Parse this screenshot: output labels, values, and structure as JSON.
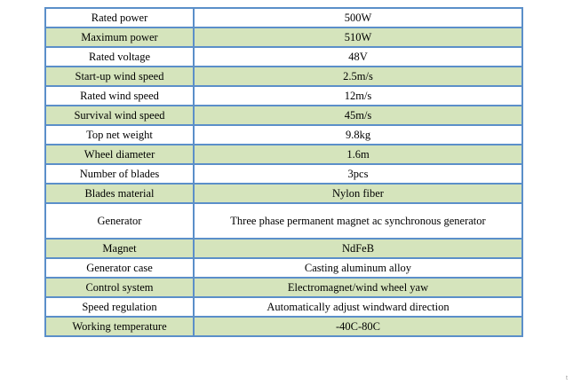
{
  "colors": {
    "border": "#5b8fc9",
    "shaded_row": "#d5e4bc",
    "plain_row": "#ffffff"
  },
  "rows": [
    {
      "label": "Rated power",
      "value": "500W",
      "shaded": false,
      "tall": false
    },
    {
      "label": "Maximum power",
      "value": "510W",
      "shaded": true,
      "tall": false
    },
    {
      "label": "Rated voltage",
      "value": "48V",
      "shaded": false,
      "tall": false
    },
    {
      "label": "Start-up wind speed",
      "value": "2.5m/s",
      "shaded": true,
      "tall": false
    },
    {
      "label": "Rated wind speed",
      "value": "12m/s",
      "shaded": false,
      "tall": false
    },
    {
      "label": "Survival wind speed",
      "value": "45m/s",
      "shaded": true,
      "tall": false
    },
    {
      "label": "Top net weight",
      "value": "9.8kg",
      "shaded": false,
      "tall": false
    },
    {
      "label": "Wheel diameter",
      "value": "1.6m",
      "shaded": true,
      "tall": false
    },
    {
      "label": "Number of blades",
      "value": "3pcs",
      "shaded": false,
      "tall": false
    },
    {
      "label": "Blades material",
      "value": "Nylon fiber",
      "shaded": true,
      "tall": false
    },
    {
      "label": "Generator",
      "value": "Three phase permanent magnet ac synchronous generator",
      "shaded": false,
      "tall": true
    },
    {
      "label": "Magnet",
      "value": "NdFeB",
      "shaded": true,
      "tall": false
    },
    {
      "label": "Generator case",
      "value": "Casting aluminum alloy",
      "shaded": false,
      "tall": false
    },
    {
      "label": "Control system",
      "value": "Electromagnet/wind wheel yaw",
      "shaded": true,
      "tall": false
    },
    {
      "label": "Speed regulation",
      "value": "Automatically adjust windward direction",
      "shaded": false,
      "tall": false
    },
    {
      "label": "Working temperature",
      "value": "-40C-80C",
      "shaded": true,
      "tall": false
    }
  ],
  "corner_mark": "t"
}
